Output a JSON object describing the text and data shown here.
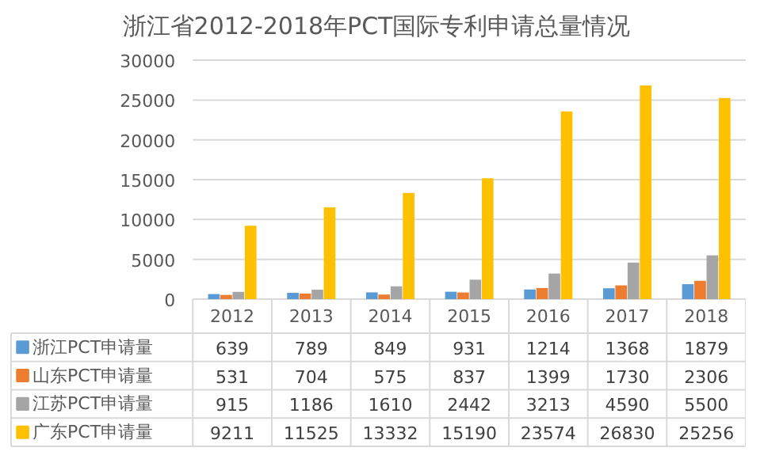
{
  "chart_data": {
    "type": "bar",
    "title": "浙江省2012-2018年PCT国际专利申请总量情况",
    "categories": [
      "2012",
      "2013",
      "2014",
      "2015",
      "2016",
      "2017",
      "2018"
    ],
    "series": [
      {
        "name": "浙江PCT申请量",
        "color": "#5b9bd5",
        "values": [
          639,
          789,
          849,
          931,
          1214,
          1368,
          1879
        ]
      },
      {
        "name": "山东PCT申请量",
        "color": "#ed7d31",
        "values": [
          531,
          704,
          575,
          837,
          1399,
          1730,
          2306
        ]
      },
      {
        "name": "江苏PCT申请量",
        "color": "#a5a5a5",
        "values": [
          915,
          1186,
          1610,
          2442,
          3213,
          4590,
          5500
        ]
      },
      {
        "name": "广东PCT申请量",
        "color": "#ffc000",
        "values": [
          9211,
          11525,
          13332,
          15190,
          23574,
          26830,
          25256
        ]
      }
    ],
    "ylim": [
      0,
      30000
    ],
    "yticks": [
      0,
      5000,
      10000,
      15000,
      20000,
      25000,
      30000
    ],
    "grid": "y",
    "legend": "bottom",
    "data_labels": true
  }
}
